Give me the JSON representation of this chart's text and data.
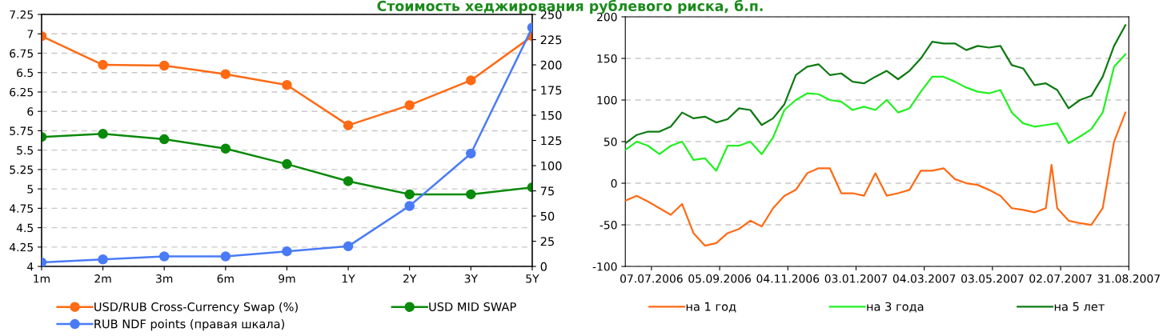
{
  "chart_data": [
    {
      "type": "line",
      "categories": [
        "1m",
        "2m",
        "3m",
        "6m",
        "9m",
        "1Y",
        "2Y",
        "3Y",
        "5Y"
      ],
      "series": [
        {
          "name": "USD/RUB Cross-Currency Swap (%)",
          "color": "#ff6a13",
          "values": [
            6.97,
            6.6,
            6.59,
            6.48,
            6.34,
            5.82,
            6.08,
            6.4,
            6.97
          ]
        },
        {
          "name": "USD MID SWAP",
          "color": "#0a8a0a",
          "values": [
            5.67,
            5.71,
            5.64,
            5.52,
            5.32,
            5.1,
            4.93,
            4.93,
            5.02
          ]
        },
        {
          "name": "RUB NDF points (правая шкала)",
          "color": "#4a7bf7",
          "axis": "y2",
          "values": [
            4,
            7,
            10,
            10,
            15,
            20,
            60,
            112,
            237
          ]
        }
      ],
      "ylim": [
        4,
        7.25
      ],
      "yticks": [
        4,
        4.25,
        4.5,
        4.75,
        5,
        5.25,
        5.5,
        5.75,
        6,
        6.25,
        6.5,
        6.75,
        7,
        7.25
      ],
      "y2lim": [
        0,
        250
      ],
      "y2ticks": [
        0,
        25,
        50,
        75,
        100,
        125,
        150,
        175,
        200,
        225,
        250
      ],
      "grid": "y",
      "legend": "bottom",
      "marker": "circle",
      "line_style": "solid"
    },
    {
      "type": "line",
      "title": "Стоимость хеджирования рублевого риска, б.п.",
      "x": [
        "2006-06-14",
        "2006-06-24",
        "2006-07-04",
        "2006-07-14",
        "2006-07-24",
        "2006-08-03",
        "2006-08-13",
        "2006-08-23",
        "2006-09-02",
        "2006-09-12",
        "2006-09-22",
        "2006-10-02",
        "2006-10-12",
        "2006-10-22",
        "2006-11-01",
        "2006-11-11",
        "2006-11-21",
        "2006-12-01",
        "2006-12-11",
        "2006-12-21",
        "2006-12-31",
        "2007-01-10",
        "2007-01-20",
        "2007-01-30",
        "2007-02-09",
        "2007-02-19",
        "2007-03-01",
        "2007-03-11",
        "2007-03-21",
        "2007-03-31",
        "2007-04-10",
        "2007-04-20",
        "2007-04-30",
        "2007-05-10",
        "2007-05-20",
        "2007-05-30",
        "2007-06-09",
        "2007-06-19",
        "2007-06-29",
        "2007-07-09",
        "2007-07-19",
        "2007-07-29",
        "2007-08-08",
        "2007-08-18",
        "2007-08-28"
      ],
      "series": [
        {
          "name": "на 1 год",
          "color": "#ff6a13",
          "x": [
            "2006-06-14",
            "2006-06-24",
            "2006-07-04",
            "2006-07-14",
            "2006-07-24",
            "2006-08-03",
            "2006-08-13",
            "2006-08-23",
            "2006-09-02",
            "2006-09-12",
            "2006-09-22",
            "2006-10-02",
            "2006-10-12",
            "2006-10-22",
            "2006-11-01",
            "2006-11-11",
            "2006-11-21",
            "2006-12-01",
            "2006-12-11",
            "2006-12-21",
            "2006-12-31",
            "2007-01-10",
            "2007-01-20",
            "2007-01-30",
            "2007-02-09",
            "2007-02-19",
            "2007-03-01",
            "2007-03-11",
            "2007-03-21",
            "2007-03-31",
            "2007-04-10",
            "2007-04-20",
            "2007-04-30",
            "2007-05-10",
            "2007-05-20",
            "2007-05-30",
            "2007-06-09",
            "2007-06-19",
            "2007-06-24",
            "2007-06-29",
            "2007-07-09",
            "2007-07-19",
            "2007-07-29",
            "2007-08-08",
            "2007-08-18",
            "2007-08-28"
          ],
          "values": [
            -21,
            -15,
            -22,
            -30,
            -38,
            -25,
            -60,
            -75,
            -72,
            -60,
            -55,
            -45,
            -52,
            -30,
            -15,
            -8,
            12,
            18,
            18,
            -12,
            -12,
            -15,
            12,
            -15,
            -12,
            -8,
            15,
            15,
            18,
            5,
            0,
            -2,
            -8,
            -15,
            -30,
            -32,
            -35,
            -30,
            22,
            -30,
            -45,
            -48,
            -50,
            -30,
            50,
            85
          ]
        },
        {
          "name": "на 3 года",
          "color": "#22f022",
          "values": [
            40,
            50,
            45,
            35,
            45,
            50,
            28,
            30,
            15,
            45,
            45,
            50,
            35,
            55,
            88,
            100,
            108,
            107,
            100,
            98,
            88,
            92,
            88,
            100,
            85,
            90,
            110,
            128,
            128,
            122,
            115,
            110,
            108,
            112,
            85,
            72,
            68,
            70,
            72,
            48,
            56,
            65,
            85,
            140,
            155
          ]
        },
        {
          "name": "на 5 лет",
          "color": "#0e7a12",
          "values": [
            48,
            58,
            62,
            62,
            68,
            85,
            78,
            80,
            73,
            77,
            90,
            88,
            70,
            78,
            95,
            130,
            140,
            143,
            130,
            132,
            122,
            120,
            128,
            135,
            125,
            135,
            150,
            170,
            168,
            168,
            160,
            165,
            163,
            165,
            142,
            138,
            118,
            120,
            112,
            90,
            100,
            105,
            128,
            165,
            190
          ]
        }
      ],
      "xlim": [
        "2006-06-14",
        "2007-08-31"
      ],
      "xticks": [
        {
          "value": "2006-07-07",
          "label": "07.07.2006"
        },
        {
          "value": "2006-09-05",
          "label": "05.09.2006"
        },
        {
          "value": "2006-11-04",
          "label": "04.11.2006"
        },
        {
          "value": "2007-01-03",
          "label": "03.01.2007"
        },
        {
          "value": "2007-03-04",
          "label": "04.03.2007"
        },
        {
          "value": "2007-05-03",
          "label": "03.05.2007"
        },
        {
          "value": "2007-07-02",
          "label": "02.07.2007"
        },
        {
          "value": "2007-08-31",
          "label": "31.08.2007"
        }
      ],
      "ylim": [
        -100,
        200
      ],
      "yticks": [
        -100,
        -50,
        0,
        50,
        100,
        150,
        200
      ],
      "grid": "y",
      "legend": "bottom",
      "marker": "none",
      "line_style": "solid"
    }
  ]
}
